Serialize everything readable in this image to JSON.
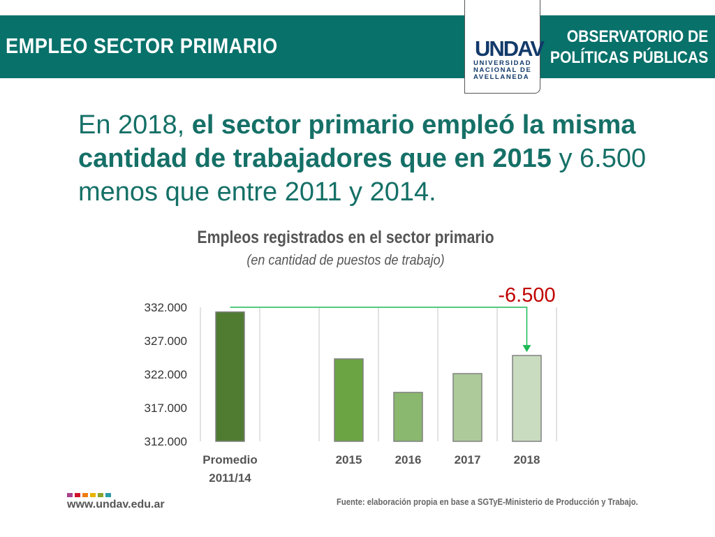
{
  "header": {
    "title": "EMPLEO SECTOR PRIMARIO",
    "observatorio_line1": "OBSERVATORIO DE",
    "observatorio_line2": "POLÍTICAS PÚBLICAS",
    "logo_mark": "UNDAV",
    "logo_name": [
      "UNIVERSIDAD",
      "NACIONAL DE",
      "AVELLANEDA"
    ]
  },
  "headline": {
    "p1": "En 2018, ",
    "b1": "el sector primario empleó la misma cantidad de trabajadores que en 2015",
    "p2": " y 6.500 menos que entre 2011 y 2014."
  },
  "chart_data": {
    "type": "bar",
    "title": "Empleos registrados en el sector primario",
    "subtitle": "(en cantidad de puestos de trabajo)",
    "categories": [
      "Promedio 2011/14",
      "",
      "2015",
      "2016",
      "2017",
      "2018"
    ],
    "category_lines": [
      [
        "Promedio",
        "2011/14"
      ],
      [],
      [
        "2015"
      ],
      [
        "2016"
      ],
      [
        "2017"
      ],
      [
        "2018"
      ]
    ],
    "values": [
      331300,
      null,
      324300,
      319300,
      322100,
      324800
    ],
    "colors": [
      "#507c32",
      "",
      "#6aa443",
      "#8ab86e",
      "#adcb9a",
      "#c9dcbf"
    ],
    "ylim": [
      312000,
      332000
    ],
    "yticks": [
      312000,
      317000,
      322000,
      327000,
      332000
    ],
    "ytick_labels": [
      "312.000",
      "317.000",
      "322.000",
      "327.000",
      "332.000"
    ],
    "annotation": "-6.500",
    "annotation_color": "#c00000",
    "arrow_color": "#1db954",
    "grid": "vertical"
  },
  "footer": {
    "site": "www.undav.edu.ar",
    "source": "Fuente: elaboración propia en base a SGTyE-Ministerio de Producción y Trabajo.",
    "dots": [
      "#a8418e",
      "#d0112b",
      "#f07c12",
      "#e8b400",
      "#8aa52a",
      "#2a9ca8"
    ]
  }
}
